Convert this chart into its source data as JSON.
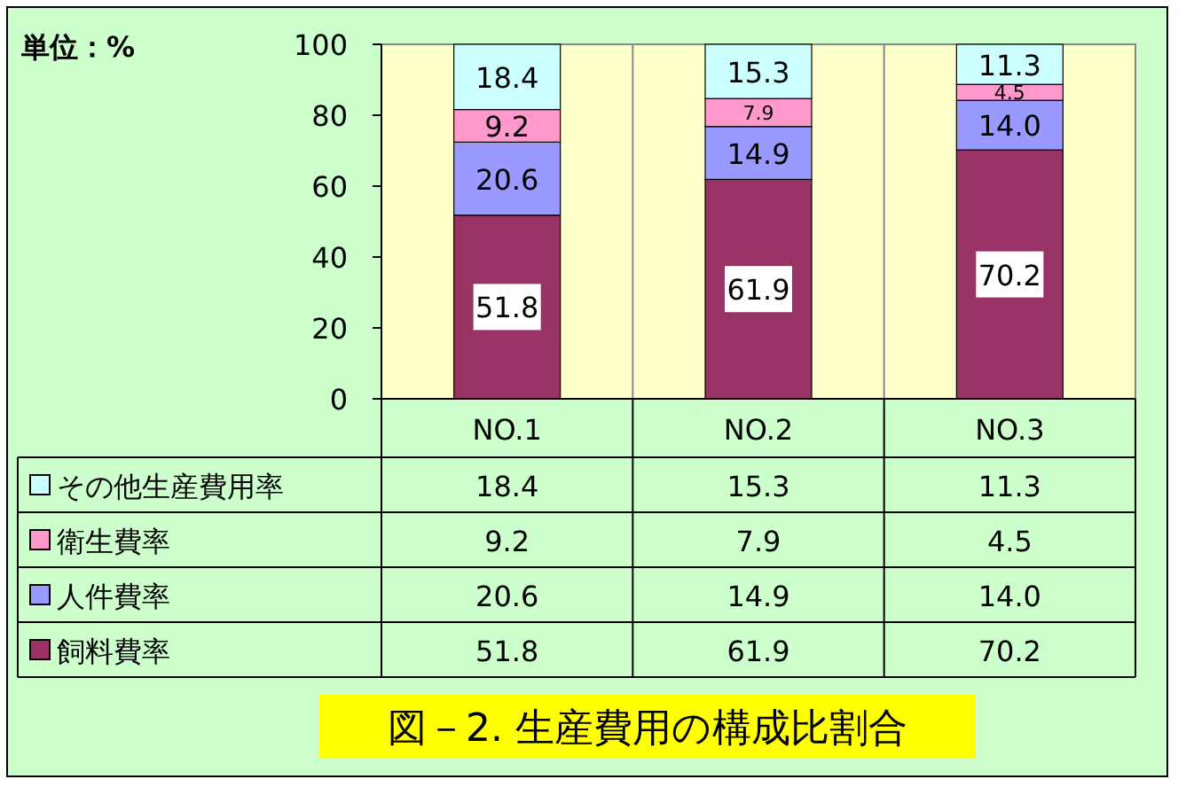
{
  "chart_data": {
    "type": "bar",
    "title": "図－2. 生産費用の構成比割合",
    "annotations": [
      "単位：%"
    ],
    "categories": [
      "NO.1",
      "NO.2",
      "NO.3"
    ],
    "stacked": true,
    "ylim": [
      0,
      100
    ],
    "yticks": [
      0,
      20,
      40,
      60,
      80,
      100
    ],
    "legend": "bottom",
    "series": [
      {
        "name": "飼料費率",
        "color": "#993366",
        "values": [
          51.8,
          61.9,
          70.2
        ],
        "value_labels": [
          "51.8",
          "61.9",
          "70.2"
        ]
      },
      {
        "name": "人件費率",
        "color": "#9999ff",
        "values": [
          20.6,
          14.9,
          14.0
        ],
        "value_labels": [
          "20.6",
          "14.9",
          "14.0"
        ]
      },
      {
        "name": "衛生費率",
        "color": "#ff99cc",
        "values": [
          9.2,
          7.9,
          4.5
        ],
        "value_labels": [
          "9.2",
          "7.9",
          "4.5"
        ]
      },
      {
        "name": "その他生産費用率",
        "color": "#ccffff",
        "values": [
          18.4,
          15.3,
          11.3
        ],
        "value_labels": [
          "18.4",
          "15.3",
          "11.3"
        ]
      }
    ]
  }
}
